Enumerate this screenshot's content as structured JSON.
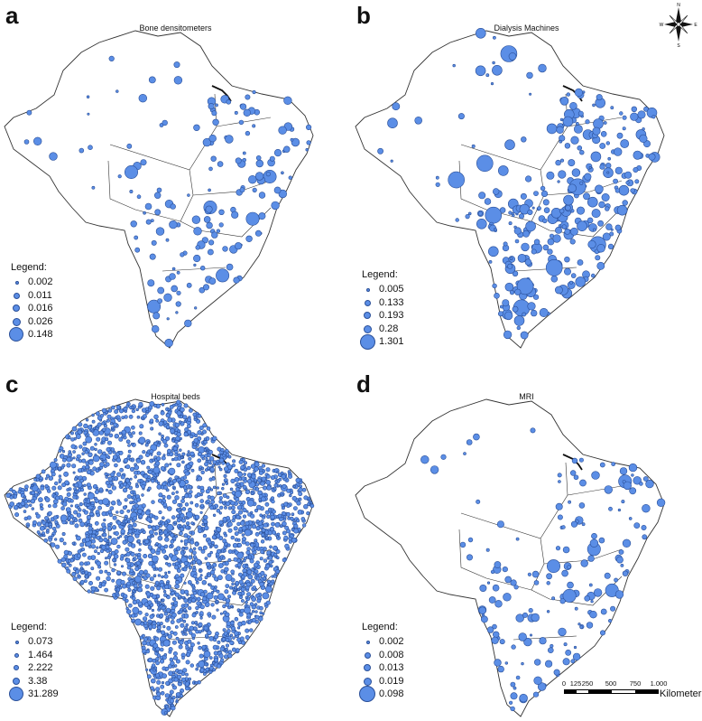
{
  "panels": {
    "a": {
      "letter": "a",
      "title": "Bone densitometers",
      "legend_title": "Legend:",
      "legend_values": [
        "0.002",
        "0.011",
        "0.016",
        "0.026",
        "0.148"
      ],
      "density": "sparse",
      "distribution": "south-east-weighted"
    },
    "b": {
      "letter": "b",
      "title": "Dialysis Machines",
      "legend_title": "Legend:",
      "legend_values": [
        "0.005",
        "0.133",
        "0.193",
        "0.28",
        "1.301"
      ],
      "density": "medium",
      "distribution": "south-east-weighted"
    },
    "c": {
      "letter": "c",
      "title": "Hospital beds",
      "legend_title": "Legend:",
      "legend_values": [
        "0.073",
        "1.464",
        "2.222",
        "3.38",
        "31.289"
      ],
      "density": "very-dense",
      "distribution": "nationwide"
    },
    "d": {
      "letter": "d",
      "title": "MRI",
      "legend_title": "Legend:",
      "legend_values": [
        "0.002",
        "0.008",
        "0.013",
        "0.019",
        "0.098"
      ],
      "density": "sparse",
      "distribution": "south-east-weighted"
    }
  },
  "compass": {
    "north": "N",
    "south": "S",
    "east": "E",
    "west": "W",
    "icon": "compass-rose-icon"
  },
  "scale": {
    "ticks": [
      "0",
      "125",
      "250",
      "500",
      "750",
      "1.000"
    ],
    "unit": "Kilometer"
  },
  "colors": {
    "marker_fill": "#5b8ee6",
    "marker_stroke": "#2a4f98",
    "border": "#333333",
    "background": "#ffffff"
  }
}
